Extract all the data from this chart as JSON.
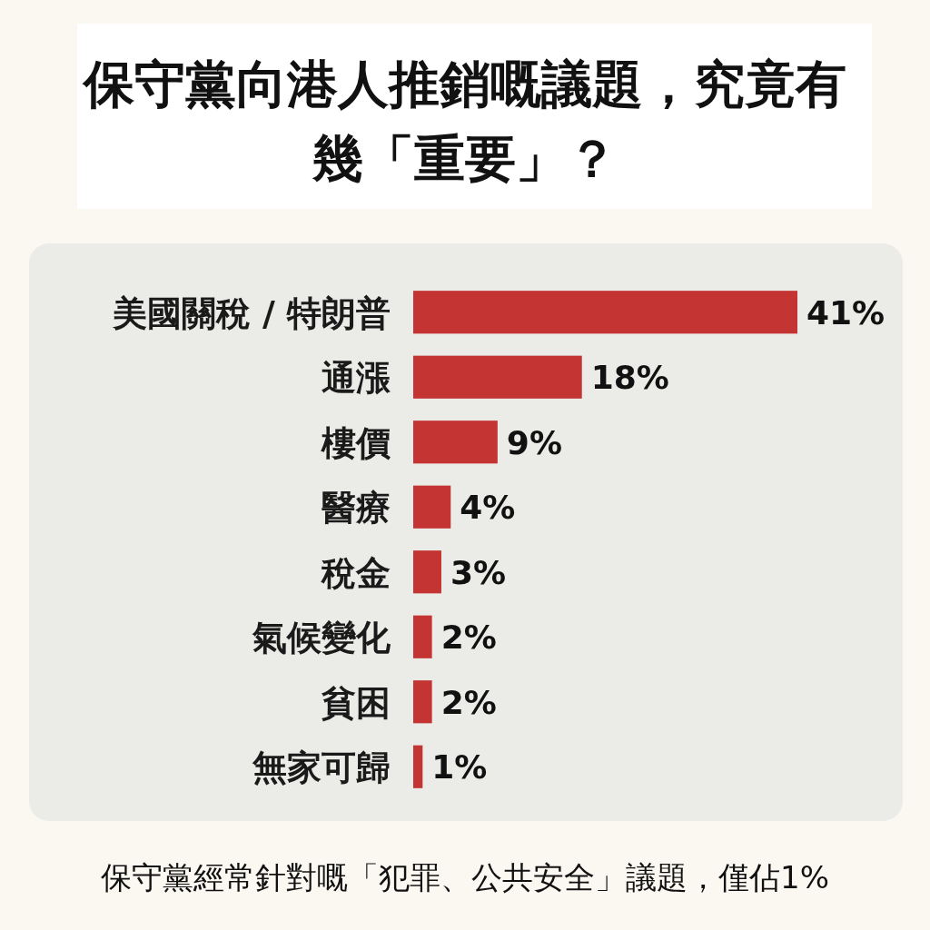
{
  "chart_data": {
    "type": "bar",
    "orientation": "horizontal",
    "title": "保守黨向港人推銷嘅議題，究竟有幾「重要」？",
    "categories": [
      "美國關稅 / 特朗普",
      "通漲",
      "樓價",
      "醫療",
      "稅金",
      "氣候變化",
      "貧困",
      "無家可歸"
    ],
    "values": [
      41,
      18,
      9,
      4,
      3,
      2,
      2,
      1
    ],
    "value_labels": [
      "41%",
      "18%",
      "9%",
      "4%",
      "3%",
      "2%",
      "2%",
      "1%"
    ],
    "color": "#c33432",
    "annotations": [
      "保守黨經常針對嘅「犯罪、公共安全」議題，僅佔1%"
    ]
  }
}
